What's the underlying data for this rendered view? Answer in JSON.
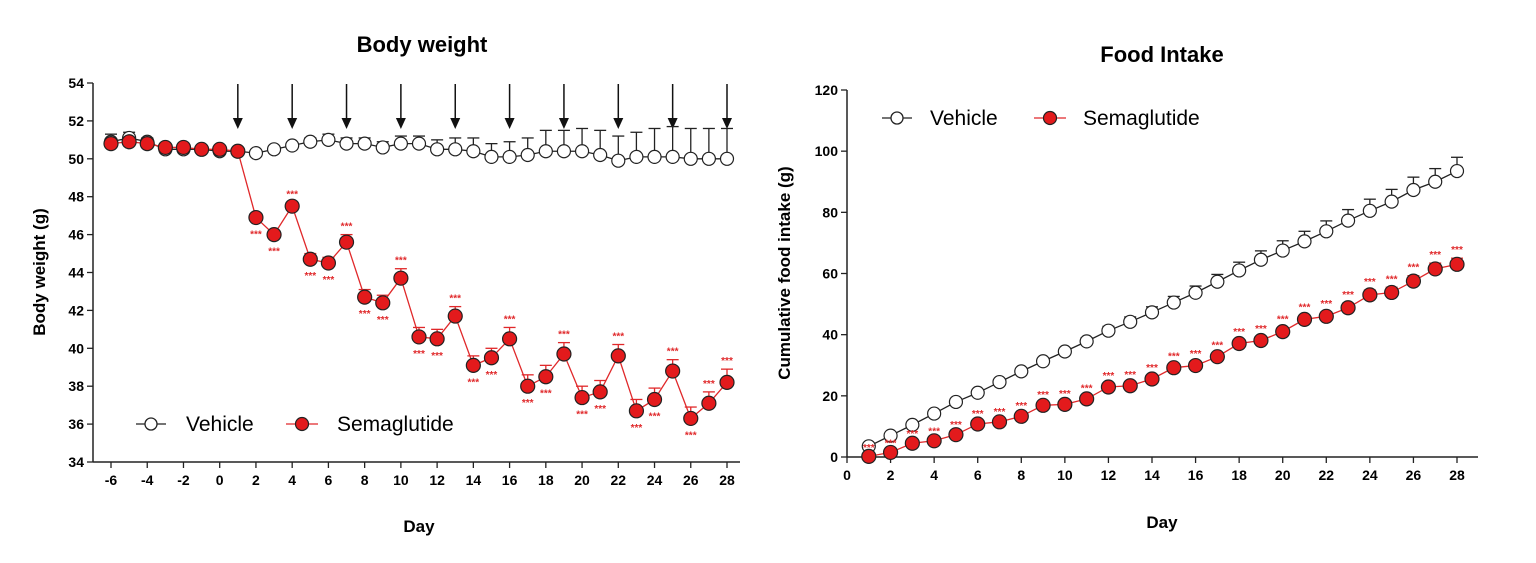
{
  "colors": {
    "vehicle": "#222222",
    "semaglutide": "#e0282a",
    "semaglutide_fill": "#e31a1c"
  },
  "chart_data": [
    {
      "type": "line",
      "title": "Body weight",
      "xlabel": "Day",
      "ylabel": "Body weight (g)",
      "xlim": [
        -7,
        29
      ],
      "ylim": [
        34,
        54
      ],
      "xticks": [
        -6,
        -4,
        -2,
        0,
        2,
        4,
        6,
        8,
        10,
        12,
        14,
        16,
        18,
        20,
        22,
        24,
        26,
        28
      ],
      "yticks": [
        34,
        36,
        38,
        40,
        42,
        44,
        46,
        48,
        50,
        52,
        54
      ],
      "legend": "bottom-left",
      "grid": false,
      "dosing_arrow_days": [
        1,
        4,
        7,
        10,
        13,
        16,
        19,
        22,
        25,
        28
      ],
      "x": [
        -6,
        -5,
        -4,
        -3,
        -2,
        -1,
        0,
        1,
        2,
        3,
        4,
        5,
        6,
        7,
        8,
        9,
        10,
        11,
        12,
        13,
        14,
        15,
        16,
        17,
        18,
        19,
        20,
        21,
        22,
        23,
        24,
        25,
        26,
        27,
        28
      ],
      "series": [
        {
          "name": "Vehicle",
          "values": [
            50.9,
            51.1,
            50.9,
            50.5,
            50.5,
            50.5,
            50.4,
            50.4,
            50.3,
            50.5,
            50.7,
            50.9,
            51.0,
            50.8,
            50.8,
            50.6,
            50.8,
            50.8,
            50.5,
            50.5,
            50.4,
            50.1,
            50.1,
            50.2,
            50.4,
            50.4,
            50.4,
            50.2,
            49.9,
            50.1,
            50.1,
            50.1,
            50.0,
            50.0,
            50.0
          ],
          "sem": [
            0.4,
            0.3,
            0.2,
            0.2,
            0.2,
            0.1,
            0.1,
            0.1,
            0.1,
            0.1,
            0.1,
            0.2,
            0.3,
            0.3,
            0.3,
            0.3,
            0.4,
            0.4,
            0.5,
            0.6,
            0.7,
            0.7,
            0.8,
            0.9,
            1.1,
            1.1,
            1.2,
            1.3,
            1.3,
            1.3,
            1.5,
            1.6,
            1.6,
            1.6,
            1.6
          ]
        },
        {
          "name": "Semaglutide",
          "values": [
            50.8,
            50.9,
            50.8,
            50.6,
            50.6,
            50.5,
            50.5,
            50.4,
            46.9,
            46.0,
            47.5,
            44.7,
            44.5,
            45.6,
            42.7,
            42.4,
            43.7,
            40.6,
            40.5,
            41.7,
            39.1,
            39.5,
            40.5,
            38.0,
            38.5,
            39.7,
            37.4,
            37.7,
            39.6,
            36.7,
            37.3,
            38.8,
            36.3,
            37.1,
            38.2
          ],
          "sem": [
            0.2,
            0.2,
            0.2,
            0.1,
            0.1,
            0.1,
            0.1,
            0.1,
            0.2,
            0.2,
            0.2,
            0.3,
            0.3,
            0.4,
            0.4,
            0.4,
            0.5,
            0.5,
            0.5,
            0.5,
            0.5,
            0.5,
            0.6,
            0.6,
            0.6,
            0.6,
            0.6,
            0.6,
            0.6,
            0.6,
            0.6,
            0.6,
            0.6,
            0.6,
            0.7
          ],
          "significance": [
            "",
            "",
            "",
            "",
            "",
            "",
            "",
            "",
            "***",
            "***",
            "***",
            "***",
            "***",
            "***",
            "***",
            "***",
            "***",
            "***",
            "***",
            "***",
            "***",
            "***",
            "***",
            "***",
            "***",
            "***",
            "***",
            "***",
            "***",
            "***",
            "***",
            "***",
            "***",
            "***",
            "***"
          ]
        }
      ]
    },
    {
      "type": "line",
      "title": "Food Intake",
      "xlabel": "Day",
      "ylabel": "Cumulative food intake (g)",
      "xlim": [
        0,
        29
      ],
      "ylim": [
        0,
        120
      ],
      "xticks": [
        0,
        2,
        4,
        6,
        8,
        10,
        12,
        14,
        16,
        18,
        20,
        22,
        24,
        26,
        28
      ],
      "yticks": [
        0,
        20,
        40,
        60,
        80,
        100,
        120
      ],
      "legend": "top-left",
      "grid": false,
      "x": [
        1,
        2,
        3,
        4,
        5,
        6,
        7,
        8,
        9,
        10,
        11,
        12,
        13,
        14,
        15,
        16,
        17,
        18,
        19,
        20,
        21,
        22,
        23,
        24,
        25,
        26,
        27,
        28
      ],
      "series": [
        {
          "name": "Vehicle",
          "values": [
            3.5,
            7,
            10.5,
            14.2,
            18,
            21,
            24.5,
            28,
            31.3,
            34.5,
            37.8,
            41.3,
            44.2,
            47.3,
            50.5,
            53.7,
            57.3,
            61,
            64.5,
            67.5,
            70.5,
            73.8,
            77.3,
            80.5,
            83.5,
            87.3,
            90,
            93.5
          ],
          "sem": [
            0.3,
            0.4,
            0.5,
            0.6,
            0.6,
            0.7,
            0.8,
            0.8,
            0.9,
            1,
            1.2,
            1.4,
            1.6,
            1.8,
            2,
            2.2,
            2.4,
            2.7,
            2.9,
            3.2,
            3.3,
            3.4,
            3.6,
            3.8,
            4,
            4.2,
            4.3,
            4.5
          ]
        },
        {
          "name": "Semaglutide",
          "values": [
            0.2,
            1.5,
            4.5,
            5.3,
            7.3,
            10.8,
            11.5,
            13.3,
            16.9,
            17.2,
            19,
            22.9,
            23.3,
            25.5,
            29.2,
            29.9,
            32.8,
            37.1,
            38.1,
            41,
            45,
            46,
            48.8,
            53,
            53.8,
            57.5,
            61.5,
            63
          ],
          "sem": [
            0.2,
            0.3,
            0.4,
            0.5,
            0.5,
            0.6,
            0.6,
            0.7,
            0.7,
            0.8,
            0.8,
            0.9,
            0.9,
            1,
            1,
            1.1,
            1.1,
            1.2,
            1.2,
            1.3,
            1.3,
            1.4,
            1.5,
            1.6,
            1.7,
            1.8,
            1.9,
            2
          ],
          "significance": [
            "***",
            "***",
            "***",
            "***",
            "***",
            "***",
            "***",
            "***",
            "***",
            "***",
            "***",
            "***",
            "***",
            "***",
            "***",
            "***",
            "***",
            "***",
            "***",
            "***",
            "***",
            "***",
            "***",
            "***",
            "***",
            "***",
            "***",
            "***"
          ]
        }
      ]
    }
  ]
}
